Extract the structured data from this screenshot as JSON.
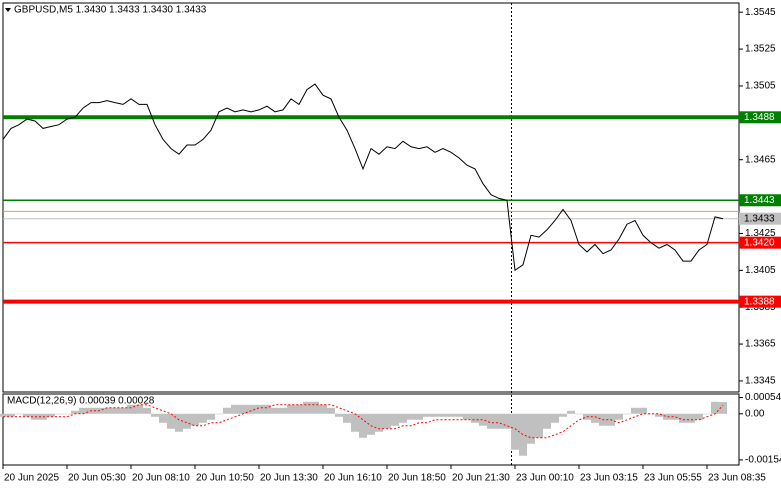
{
  "chart_data": {
    "type": "line",
    "header": "GBPUSD,M5  1.3430 1.3433 1.3430 1.3433",
    "color": "#000000",
    "values": [
      1.3476,
      1.3482,
      1.3484,
      1.3487,
      1.3486,
      1.3482,
      1.3483,
      1.3484,
      1.3487,
      1.3488,
      1.3493,
      1.3496,
      1.3496,
      1.3497,
      1.3496,
      1.3495,
      1.3498,
      1.3495,
      1.3495,
      1.3484,
      1.3476,
      1.3471,
      1.3468,
      1.3473,
      1.3473,
      1.3476,
      1.3481,
      1.3491,
      1.3493,
      1.3491,
      1.3492,
      1.3491,
      1.3492,
      1.3494,
      1.3491,
      1.3492,
      1.3498,
      1.3495,
      1.3503,
      1.3506,
      1.35,
      1.3498,
      1.3488,
      1.3481,
      1.3471,
      1.346,
      1.3471,
      1.3468,
      1.3472,
      1.3471,
      1.3475,
      1.3472,
      1.3471,
      1.3472,
      1.3469,
      1.3471,
      1.3469,
      1.3466,
      1.3462,
      1.346,
      1.3452,
      1.3446,
      1.3444,
      1.3443,
      1.3405,
      1.3408,
      1.3424,
      1.3423,
      1.3427,
      1.3432,
      1.3438,
      1.3432,
      1.3419,
      1.3415,
      1.3419,
      1.3414,
      1.3416,
      1.3422,
      1.343,
      1.3432,
      1.3424,
      1.342,
      1.3417,
      1.3419,
      1.3416,
      1.341,
      1.341,
      1.3416,
      1.3419,
      1.3434,
      1.3433
    ],
    "xlim": [
      0,
      92
    ],
    "xticks": [
      {
        "value": 0,
        "label": "20 Jun 2025"
      },
      {
        "value": 8,
        "label": "20 Jun 05:30"
      },
      {
        "value": 16,
        "label": "20 Jun 08:10"
      },
      {
        "value": 24,
        "label": "20 Jun 10:50"
      },
      {
        "value": 32,
        "label": "20 Jun 13:30"
      },
      {
        "value": 40,
        "label": "20 Jun 16:10"
      },
      {
        "value": 48,
        "label": "20 Jun 18:50"
      },
      {
        "value": 56,
        "label": "20 Jun 21:30"
      },
      {
        "value": 64,
        "label": "23 Jun 00:10"
      },
      {
        "value": 72,
        "label": "23 Jun 03:15"
      },
      {
        "value": 80,
        "label": "23 Jun 05:55"
      },
      {
        "value": 88,
        "label": "23 Jun 08:35"
      }
    ],
    "ylim": [
      1.3339,
      1.355
    ],
    "yticks": [
      1.3545,
      1.3525,
      1.3505,
      1.3465,
      1.3425,
      1.3405,
      1.3385,
      1.3365,
      1.3345
    ],
    "levels": [
      {
        "value": 1.3488,
        "label": "1.3488",
        "color": "#008000",
        "thick": true
      },
      {
        "value": 1.3443,
        "label": "1.3443",
        "color": "#008000",
        "thick": false
      },
      {
        "value": 1.342,
        "label": "1.3420",
        "color": "#ff0000",
        "thick": false
      },
      {
        "value": 1.3388,
        "label": "1.3388",
        "color": "#ff0000",
        "thick": true
      }
    ],
    "ask_line": {
      "value": 1.3437,
      "color": "#d9a066"
    },
    "current_price": {
      "value": 1.3433,
      "label": "1.3433",
      "color": "#c0c0c0"
    },
    "indicator": {
      "type": "macd",
      "label": "MACD(12,26,9) 0.00039 0.00028",
      "histogram_color": "#c0c0c0",
      "signal_color": "#ff0000",
      "histogram": [
        -0.0001,
        -0.0001,
        0,
        -0.0001,
        -0.0002,
        -0.0002,
        -0.0001,
        0,
        0,
        0.0001,
        0.0002,
        0.0002,
        0.0002,
        0.0002,
        0.0002,
        0.0002,
        0.0003,
        0.0003,
        0.0002,
        -0.0001,
        -0.0003,
        -0.0005,
        -0.0006,
        -0.0005,
        -0.0004,
        -0.0003,
        -0.0002,
        0,
        0.0002,
        0.0003,
        0.0003,
        0.0003,
        0.0003,
        0.0003,
        0.0002,
        0.0002,
        0.0003,
        0.0003,
        0.0004,
        0.0004,
        0.0003,
        0.0002,
        -0.0001,
        -0.0003,
        -0.0006,
        -0.0008,
        -0.0007,
        -0.0006,
        -0.0005,
        -0.0004,
        -0.0003,
        -0.0002,
        -0.0002,
        -0.0001,
        -0.0001,
        -0.0001,
        -0.0001,
        -0.0001,
        -0.0002,
        -0.0003,
        -0.0004,
        -0.0005,
        -0.0005,
        -0.0005,
        -0.0012,
        -0.0014,
        -0.001,
        -0.0008,
        -0.0005,
        -0.0003,
        -0.0001,
        0.0001,
        0,
        -0.0002,
        -0.0003,
        -0.0004,
        -0.0004,
        -0.0002,
        0,
        0.0002,
        0.0002,
        0,
        -0.0001,
        -0.0002,
        -0.0002,
        -0.0003,
        -0.0003,
        -0.0002,
        0,
        0.0004,
        0.00039
      ],
      "signal": [
        -0.0001,
        -0.0001,
        -0.0001,
        -0.0001,
        -0.0001,
        -0.0001,
        -0.0001,
        -0.0001,
        -0.0001,
        0,
        0,
        0.0001,
        0.0001,
        0.0002,
        0.0002,
        0.0002,
        0.0002,
        0.0003,
        0.0003,
        0.0002,
        0.0001,
        0,
        -0.0002,
        -0.0003,
        -0.0004,
        -0.0004,
        -0.0003,
        -0.0003,
        -0.0002,
        -0.0001,
        0,
        0.0001,
        0.0002,
        0.0002,
        0.0003,
        0.0003,
        0.0003,
        0.0003,
        0.0003,
        0.0003,
        0.0003,
        0.0003,
        0.0002,
        0.0001,
        0,
        -0.0002,
        -0.0004,
        -0.0005,
        -0.0005,
        -0.0005,
        -0.0004,
        -0.0004,
        -0.0003,
        -0.0003,
        -0.0002,
        -0.0002,
        -0.0002,
        -0.0002,
        -0.0002,
        -0.0002,
        -0.0002,
        -0.0003,
        -0.0003,
        -0.0004,
        -0.0005,
        -0.0007,
        -0.0008,
        -0.0008,
        -0.0008,
        -0.0007,
        -0.0006,
        -0.0004,
        -0.0002,
        -0.0001,
        -0.0001,
        -0.0002,
        -0.0002,
        -0.0003,
        -0.0002,
        -0.0001,
        0,
        0,
        0,
        -0.0001,
        -0.0001,
        -0.0002,
        -0.0002,
        -0.0002,
        -0.0001,
        0,
        0.00028
      ],
      "ylim": [
        -0.00171,
        0.00066
      ],
      "yticks": [
        0.00054,
        {
          "value": 0,
          "label": "0.00"
        },
        -0.00154
      ]
    }
  }
}
